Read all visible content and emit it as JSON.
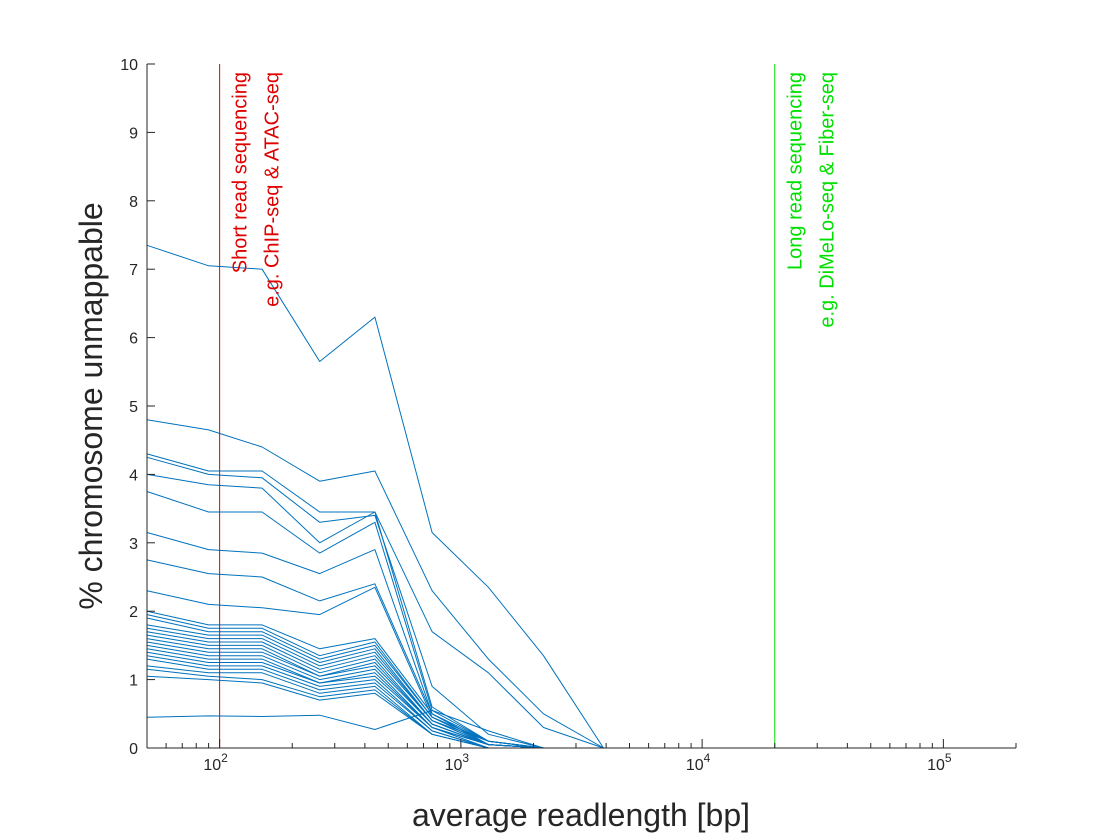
{
  "chart_data": {
    "type": "line",
    "title": "",
    "xlabel": "average readlength [bp]",
    "ylabel": "% chromosome unmappable",
    "xscale": "log",
    "xlim": [
      50,
      200000
    ],
    "ylim": [
      0,
      10
    ],
    "grid": false,
    "legend": "none",
    "series_color": "#0072BD",
    "x": [
      50,
      90,
      150,
      260,
      440,
      760,
      1300,
      2200,
      3900
    ],
    "yticks": [
      0,
      1,
      2,
      3,
      4,
      5,
      6,
      7,
      8,
      9,
      10
    ],
    "xticks": [
      {
        "value": 100,
        "base": "10",
        "exp": "2"
      },
      {
        "value": 1000,
        "base": "10",
        "exp": "3"
      },
      {
        "value": 10000,
        "base": "10",
        "exp": "4"
      },
      {
        "value": 100000,
        "base": "10",
        "exp": "5"
      }
    ],
    "vlines": [
      {
        "x": 100,
        "color": "#E00000",
        "lines": [
          "Short read sequencing",
          "e.g. ChIP-seq & ATAC-seq"
        ]
      },
      {
        "x": 20000,
        "color": "#00E000",
        "lines": [
          "Long read sequencing",
          "e.g. DiMeLo-seq & Fiber-seq"
        ]
      }
    ],
    "series": [
      {
        "values": [
          7.35,
          7.05,
          7.0,
          5.65,
          6.3,
          3.15,
          2.35,
          1.35,
          0.0
        ]
      },
      {
        "values": [
          4.8,
          4.65,
          4.4,
          3.9,
          4.05,
          2.3,
          1.3,
          0.5,
          0.0
        ]
      },
      {
        "values": [
          4.3,
          4.05,
          4.05,
          3.45,
          3.45,
          1.7,
          1.1,
          0.3,
          0.0
        ]
      },
      {
        "values": [
          4.25,
          4.0,
          3.95,
          3.3,
          3.4,
          0.9,
          0.2,
          0.0,
          0.0
        ]
      },
      {
        "values": [
          4.0,
          3.85,
          3.8,
          3.0,
          3.45,
          0.6,
          0.1,
          0.0,
          0.0
        ]
      },
      {
        "values": [
          3.75,
          3.45,
          3.45,
          2.85,
          3.3,
          0.55,
          0.1,
          0.0,
          0.0
        ]
      },
      {
        "values": [
          3.15,
          2.9,
          2.85,
          2.55,
          2.9,
          0.5,
          0.05,
          0.0,
          0.0
        ]
      },
      {
        "values": [
          2.75,
          2.55,
          2.5,
          2.15,
          2.4,
          0.5,
          0.05,
          0.0,
          0.0
        ]
      },
      {
        "values": [
          2.3,
          2.1,
          2.05,
          1.95,
          2.35,
          0.45,
          0.05,
          0.0,
          0.0
        ]
      },
      {
        "values": [
          2.0,
          1.8,
          1.8,
          1.45,
          1.6,
          0.5,
          0.1,
          0.0,
          0.0
        ]
      },
      {
        "values": [
          1.95,
          1.75,
          1.75,
          1.35,
          1.55,
          0.45,
          0.1,
          0.0,
          0.0
        ]
      },
      {
        "values": [
          1.9,
          1.7,
          1.7,
          1.3,
          1.5,
          0.45,
          0.1,
          0.0,
          0.0
        ]
      },
      {
        "values": [
          1.8,
          1.65,
          1.65,
          1.25,
          1.45,
          0.4,
          0.1,
          0.0,
          0.0
        ]
      },
      {
        "values": [
          1.75,
          1.6,
          1.6,
          1.2,
          1.4,
          0.4,
          0.05,
          0.0,
          0.0
        ]
      },
      {
        "values": [
          1.7,
          1.55,
          1.55,
          1.15,
          1.35,
          0.4,
          0.05,
          0.0,
          0.0
        ]
      },
      {
        "values": [
          1.65,
          1.5,
          1.5,
          1.1,
          1.3,
          0.35,
          0.05,
          0.0,
          0.0
        ]
      },
      {
        "values": [
          1.6,
          1.45,
          1.45,
          1.05,
          1.25,
          0.35,
          0.05,
          0.0,
          0.0
        ]
      },
      {
        "values": [
          1.55,
          1.4,
          1.4,
          1.05,
          1.2,
          0.35,
          0.05,
          0.0,
          0.0
        ]
      },
      {
        "values": [
          1.5,
          1.35,
          1.35,
          1.0,
          1.15,
          0.3,
          0.05,
          0.0,
          0.0
        ]
      },
      {
        "values": [
          1.45,
          1.3,
          1.3,
          0.95,
          1.1,
          0.3,
          0.05,
          0.0,
          0.0
        ]
      },
      {
        "values": [
          1.4,
          1.25,
          1.25,
          0.95,
          1.05,
          0.3,
          0.0,
          0.0,
          0.0
        ]
      },
      {
        "values": [
          1.35,
          1.2,
          1.2,
          0.9,
          1.0,
          0.25,
          0.0,
          0.0,
          0.0
        ]
      },
      {
        "values": [
          1.3,
          1.15,
          1.15,
          0.85,
          0.95,
          0.25,
          0.0,
          0.0,
          0.0
        ]
      },
      {
        "values": [
          1.2,
          1.1,
          1.1,
          0.8,
          0.9,
          0.2,
          0.0,
          0.0,
          0.0
        ]
      },
      {
        "values": [
          1.15,
          1.05,
          1.0,
          0.75,
          0.85,
          0.2,
          0.0,
          0.0,
          0.0
        ]
      },
      {
        "values": [
          1.05,
          1.0,
          0.95,
          0.7,
          0.8,
          0.2,
          0.0,
          0.0,
          0.0
        ]
      },
      {
        "values": [
          0.45,
          0.47,
          0.46,
          0.48,
          0.27,
          0.55,
          0.25,
          0.0,
          0.0
        ]
      }
    ]
  }
}
